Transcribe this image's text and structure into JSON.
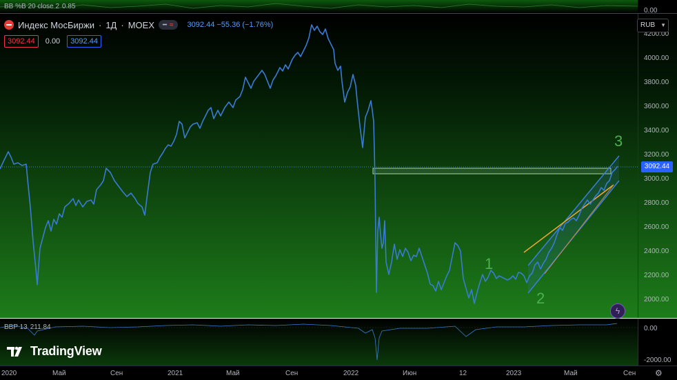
{
  "window": {
    "top_indicator_label": "BB %B 20 close 2",
    "top_indicator_value": "0.85",
    "top_indicator_axis": "0.00"
  },
  "legend": {
    "symbol_name": "Индекс МосБиржи",
    "interval": "1Д",
    "exchange": "MOEX",
    "last": "3092.44",
    "change": "−55.36 (−1.76%)",
    "bid": "3092.44",
    "spread": "0.00",
    "ask": "3092.44",
    "icons": [
      "moex-logo-icon",
      "minus-icon",
      "wave-icon"
    ]
  },
  "currency_selector": {
    "label": "RUB",
    "icon": "chevron-down-icon"
  },
  "bottom_indicator": {
    "label": "BBP 13",
    "value": "211.84",
    "axis_ticks": [
      "0.00",
      "-2000.00"
    ]
  },
  "brand": {
    "name": "TradingView"
  },
  "colors": {
    "price_line": "#3a7bd5",
    "fib_line": "#f0a830",
    "channel": "#3d7fe0",
    "box": "#a5d6a7",
    "wave_label": "#4caf50",
    "bg_top": "#000000",
    "bg_bottom": "#1b7a1b"
  },
  "chart_data": {
    "type": "line",
    "title": "Индекс МосБиржи · 1Д · MOEX",
    "y_axis_ticks": [
      "4200.00",
      "4000.00",
      "3800.00",
      "3600.00",
      "3400.00",
      "3200.00",
      "3000.00",
      "2800.00",
      "2600.00",
      "2400.00",
      "2200.00",
      "2000.00"
    ],
    "ylim": [
      1900,
      4250
    ],
    "x_axis_labels": [
      "2020",
      "Май",
      "Сен",
      "2021",
      "Май",
      "Сен",
      "2022",
      "Июн",
      "12",
      "2023",
      "Май",
      "Сен"
    ],
    "last_price_tag": "3092.44",
    "wave_labels": [
      "1",
      "2",
      "3"
    ],
    "series": [
      {
        "name": "Индекс МосБиржи",
        "x": [
          "2020-01",
          "2020-02",
          "2020-03-mid",
          "2020-03-low",
          "2020-04",
          "2020-05",
          "2020-06",
          "2020-07",
          "2020-08",
          "2020-09",
          "2020-10",
          "2020-11",
          "2020-12",
          "2021-01",
          "2021-02",
          "2021-03",
          "2021-04",
          "2021-05",
          "2021-06",
          "2021-07",
          "2021-08",
          "2021-09",
          "2021-10",
          "2021-11",
          "2021-12",
          "2022-01",
          "2022-02",
          "2022-02-24",
          "2022-03",
          "2022-04",
          "2022-05",
          "2022-06",
          "2022-07",
          "2022-08",
          "2022-09",
          "2022-10",
          "2022-11",
          "2022-12",
          "2023-01",
          "2023-02",
          "2023-03",
          "2023-04",
          "2023-05",
          "2023-06",
          "2023-07",
          "2023-08",
          "2023-09"
        ],
        "values": [
          3080,
          3120,
          2300,
          2110,
          2600,
          2680,
          2750,
          2890,
          3000,
          2860,
          2700,
          3120,
          3250,
          3450,
          3420,
          3520,
          3700,
          3750,
          3820,
          3900,
          3980,
          4150,
          4250,
          3850,
          3700,
          3450,
          3650,
          2100,
          2500,
          2350,
          2300,
          2250,
          2200,
          2150,
          2400,
          2050,
          2200,
          2150,
          2200,
          2250,
          2250,
          2450,
          2650,
          2750,
          3050,
          3150,
          3092
        ]
      }
    ],
    "annotations": [
      {
        "type": "box",
        "from_price": 3040,
        "to_price": 3100,
        "label": ""
      },
      {
        "type": "trend_channel",
        "label": ""
      },
      {
        "type": "line",
        "color": "orange",
        "label": ""
      }
    ]
  }
}
